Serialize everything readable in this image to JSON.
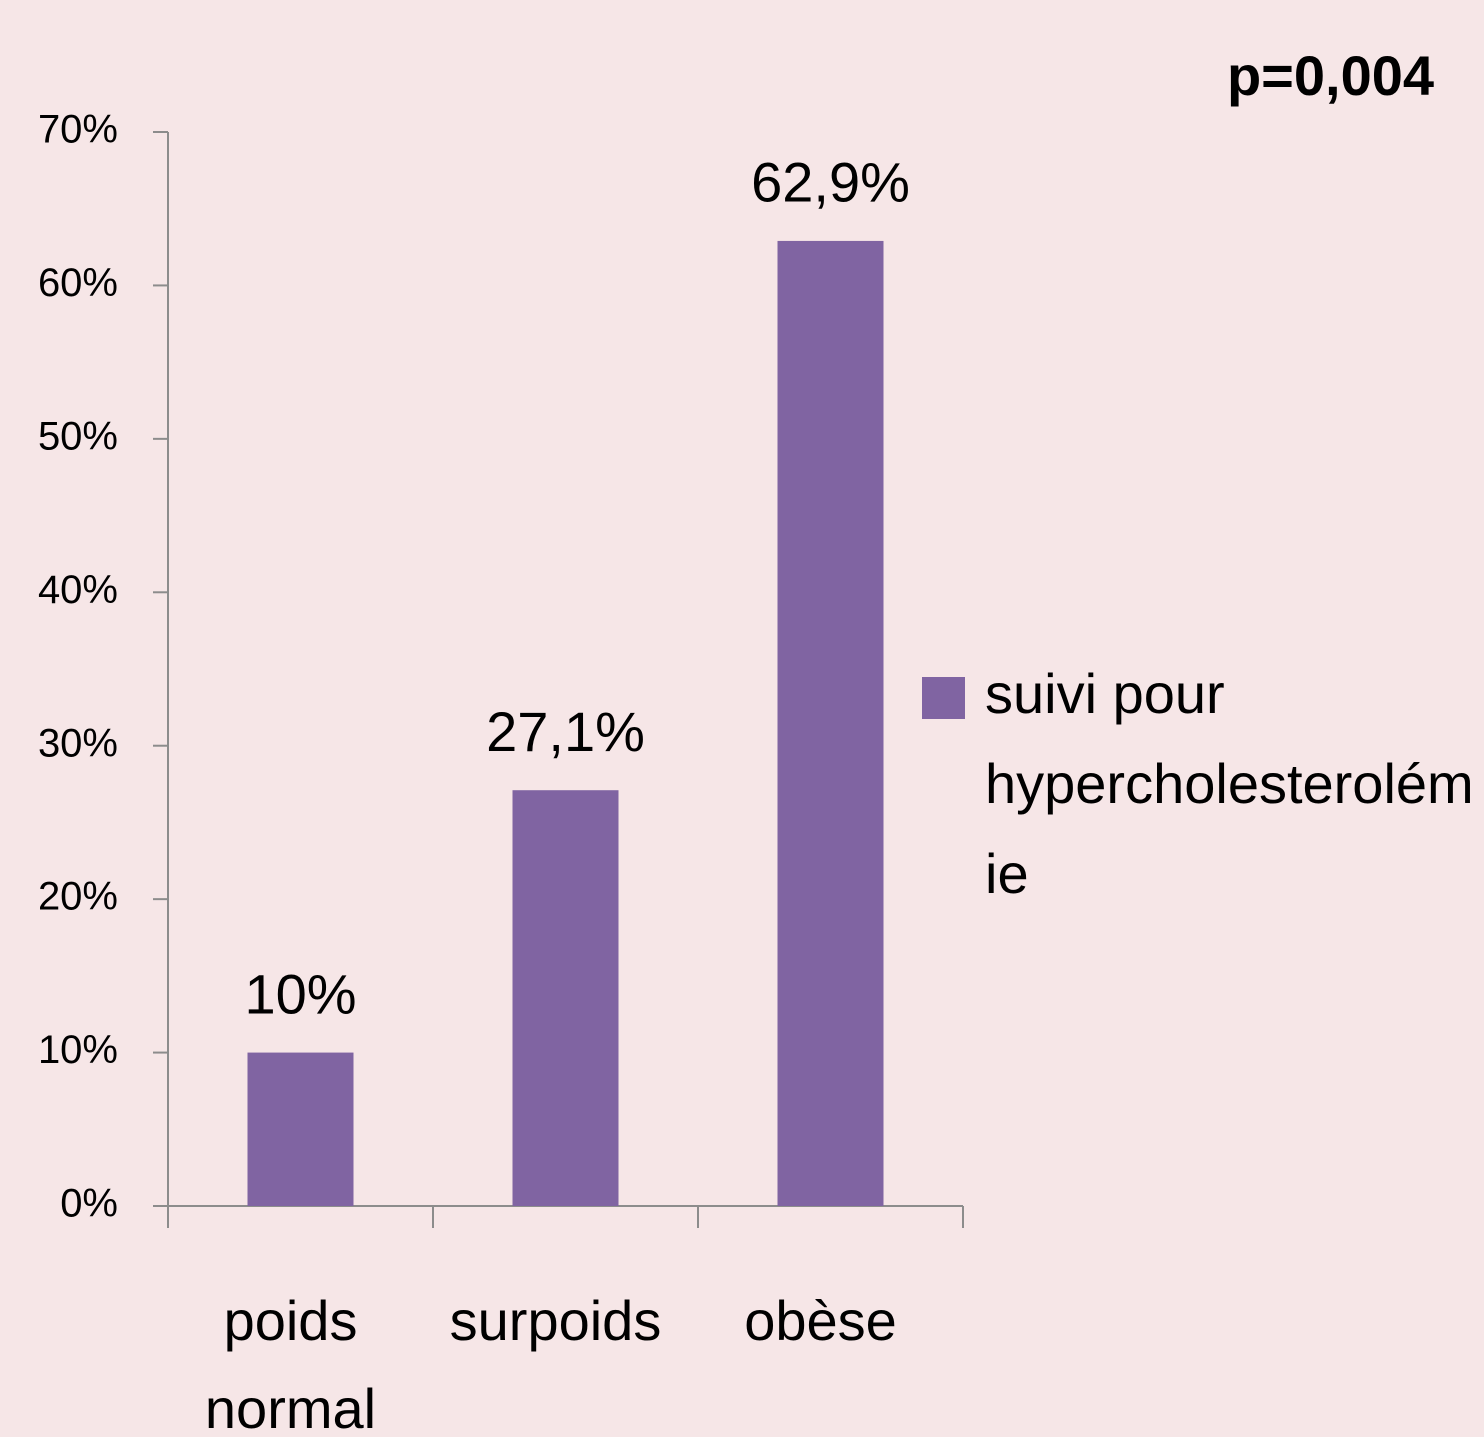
{
  "chart_data": {
    "type": "bar",
    "annotation": "p=0,004",
    "categories": [
      "poids normal",
      "surpoids",
      "obèse"
    ],
    "series": [
      {
        "name": "suivi pour hypercholesterolémie",
        "color": "#8064a2",
        "values": [
          10,
          27.1,
          62.9
        ],
        "value_labels": [
          "10%",
          "27,1%",
          "62,9%"
        ]
      }
    ],
    "ylim": [
      0,
      70
    ],
    "yticks": [
      {
        "value": 0,
        "label": "0%"
      },
      {
        "value": 10,
        "label": "10%"
      },
      {
        "value": 20,
        "label": "20%"
      },
      {
        "value": 30,
        "label": "30%"
      },
      {
        "value": 40,
        "label": "40%"
      },
      {
        "value": 50,
        "label": "50%"
      },
      {
        "value": 60,
        "label": "60%"
      },
      {
        "value": 70,
        "label": "70%"
      }
    ],
    "legend": "right"
  }
}
